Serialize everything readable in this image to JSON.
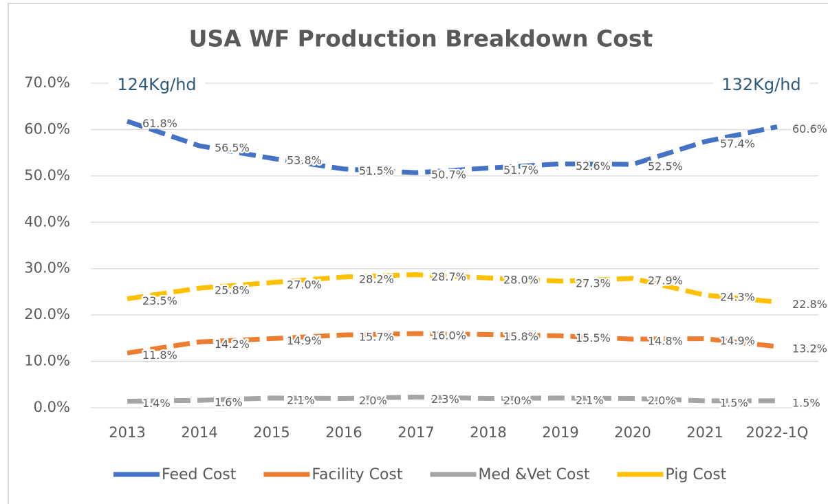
{
  "chart_data": {
    "type": "line",
    "title": "USA WF Production Breakdown Cost",
    "annotations": [
      "124Kg/hd",
      "132Kg/hd"
    ],
    "categories": [
      "2013",
      "2014",
      "2015",
      "2016",
      "2017",
      "2018",
      "2019",
      "2020",
      "2021",
      "2022-1Q"
    ],
    "series": [
      {
        "name": "Feed Cost",
        "color": "#4472c4",
        "values": [
          61.8,
          56.5,
          53.8,
          51.5,
          50.7,
          51.7,
          52.6,
          52.5,
          57.4,
          60.6
        ],
        "value_labels": [
          "61.8%",
          "56.5%",
          "53.8%",
          "51.5%",
          "50.7%",
          "51.7%",
          "52.6%",
          "52.5%",
          "57.4%",
          "60.6%"
        ]
      },
      {
        "name": "Facility Cost",
        "color": "#ed7d31",
        "values": [
          11.8,
          14.2,
          14.9,
          15.7,
          16.0,
          15.8,
          15.5,
          14.8,
          14.9,
          13.2
        ],
        "value_labels": [
          "11.8%",
          "14.2%",
          "14.9%",
          "15.7%",
          "16.0%",
          "15.8%",
          "15.5%",
          "14.8%",
          "14.9%",
          "13.2%"
        ]
      },
      {
        "name": "Med &Vet Cost",
        "color": "#a5a5a5",
        "values": [
          1.4,
          1.6,
          2.1,
          2.0,
          2.3,
          2.0,
          2.1,
          2.0,
          1.5,
          1.5
        ],
        "value_labels": [
          "1.4%",
          "1.6%",
          "2.1%",
          "2.0%",
          "2.3%",
          "2.0%",
          "2.1%",
          "2.0%",
          "1.5%",
          "1.5%"
        ]
      },
      {
        "name": "Pig Cost",
        "color": "#ffc000",
        "values": [
          23.5,
          25.8,
          27.0,
          28.2,
          28.7,
          28.0,
          27.3,
          27.9,
          24.3,
          22.8
        ],
        "value_labels": [
          "23.5%",
          "25.8%",
          "27.0%",
          "28.2%",
          "28.7%",
          "28.0%",
          "27.3%",
          "27.9%",
          "24.3%",
          "22.8%"
        ]
      }
    ],
    "ylim": [
      0,
      70
    ],
    "yticks": [
      {
        "value": 0,
        "label": "0.0%"
      },
      {
        "value": 10,
        "label": "10.0%"
      },
      {
        "value": 20,
        "label": "20.0%"
      },
      {
        "value": 30,
        "label": "30.0%"
      },
      {
        "value": 40,
        "label": "40.0%"
      },
      {
        "value": 50,
        "label": "50.0%"
      },
      {
        "value": 60,
        "label": "60.0%"
      },
      {
        "value": 70,
        "label": "70.0%"
      }
    ],
    "grid": true,
    "legend": "bottom"
  }
}
